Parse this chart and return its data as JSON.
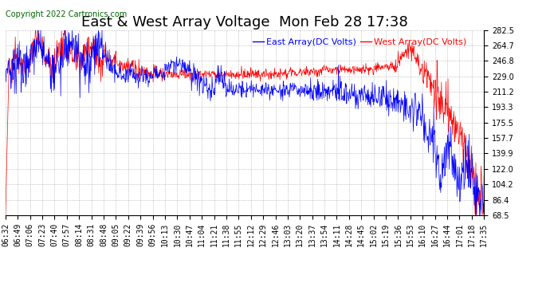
{
  "title": "East & West Array Voltage  Mon Feb 28 17:38",
  "copyright": "Copyright 2022 Cartronics.com",
  "legend_east": "East Array(DC Volts)",
  "legend_west": "West Array(DC Volts)",
  "east_color": "blue",
  "west_color": "red",
  "bg_color": "#ffffff",
  "grid_color": "#aaaaaa",
  "ylim_min": 68.5,
  "ylim_max": 282.5,
  "yticks": [
    68.5,
    86.4,
    104.2,
    122.0,
    139.9,
    157.7,
    175.5,
    193.3,
    211.2,
    229.0,
    246.8,
    264.7,
    282.5
  ],
  "xtick_labels": [
    "06:32",
    "06:49",
    "07:06",
    "07:23",
    "07:40",
    "07:57",
    "08:14",
    "08:31",
    "08:48",
    "09:05",
    "09:22",
    "09:39",
    "09:56",
    "10:13",
    "10:30",
    "10:47",
    "11:04",
    "11:21",
    "11:38",
    "11:55",
    "12:12",
    "12:29",
    "12:46",
    "13:03",
    "13:20",
    "13:37",
    "13:54",
    "14:11",
    "14:28",
    "14:45",
    "15:02",
    "15:19",
    "15:36",
    "15:53",
    "16:10",
    "16:27",
    "16:44",
    "17:01",
    "17:18",
    "17:35"
  ],
  "title_fontsize": 13,
  "axis_fontsize": 7,
  "copyright_fontsize": 7,
  "legend_fontsize": 8
}
